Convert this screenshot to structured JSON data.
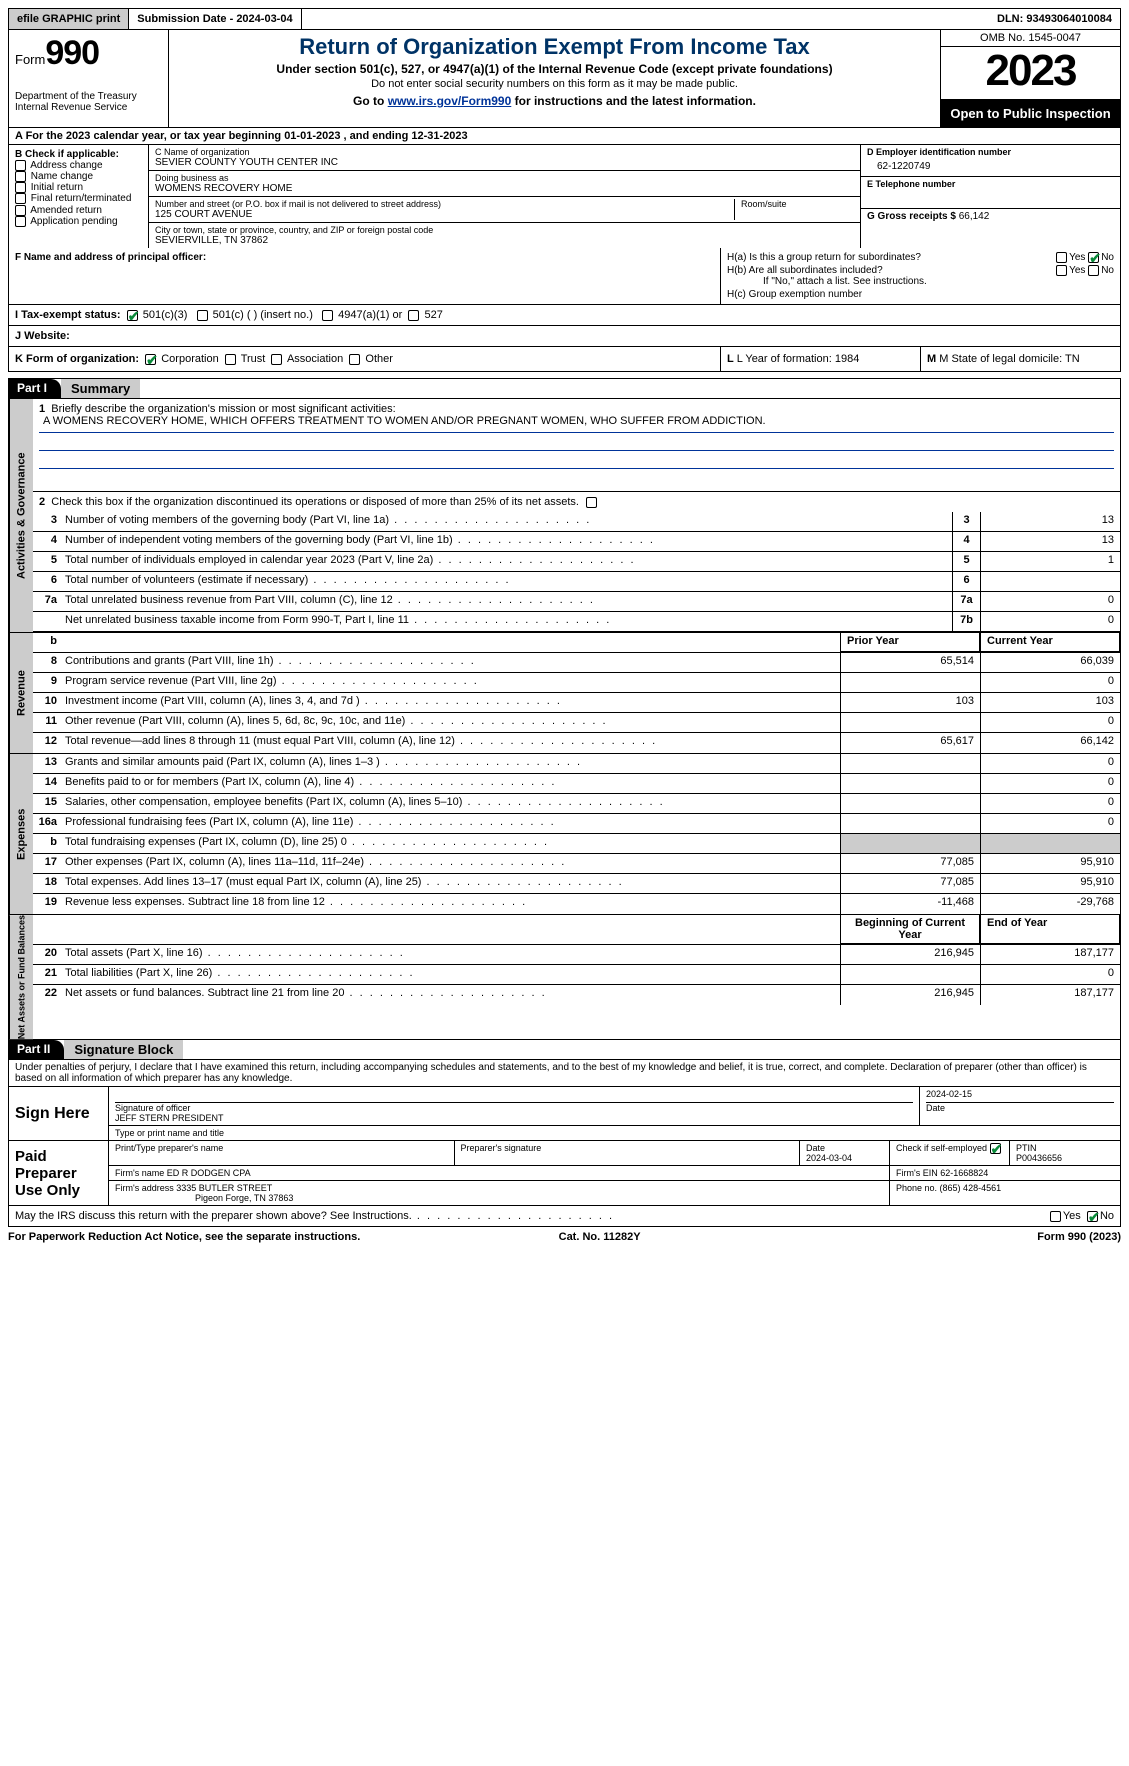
{
  "topbar": {
    "efile": "efile GRAPHIC print",
    "subdate_label": "Submission Date - 2024-03-04",
    "dln": "DLN: 93493064010084"
  },
  "header": {
    "form_label": "Form",
    "form_number": "990",
    "dept": "Department of the Treasury Internal Revenue Service",
    "title": "Return of Organization Exempt From Income Tax",
    "subtitle": "Under section 501(c), 527, or 4947(a)(1) of the Internal Revenue Code (except private foundations)",
    "note": "Do not enter social security numbers on this form as it may be made public.",
    "goto_prefix": "Go to ",
    "goto_link": "www.irs.gov/Form990",
    "goto_suffix": " for instructions and the latest information.",
    "omb": "OMB No. 1545-0047",
    "year": "2023",
    "inspect": "Open to Public Inspection"
  },
  "row_a": "A For the 2023 calendar year, or tax year beginning 01-01-2023   , and ending 12-31-2023",
  "box_b": {
    "title": "B Check if applicable:",
    "items": [
      "Address change",
      "Name change",
      "Initial return",
      "Final return/terminated",
      "Amended return",
      "Application pending"
    ]
  },
  "box_c": {
    "name_lbl": "C Name of organization",
    "name": "SEVIER COUNTY YOUTH CENTER INC",
    "dba_lbl": "Doing business as",
    "dba": "WOMENS RECOVERY HOME",
    "addr_lbl": "Number and street (or P.O. box if mail is not delivered to street address)",
    "addr": "125 COURT AVENUE",
    "room_lbl": "Room/suite",
    "city_lbl": "City or town, state or province, country, and ZIP or foreign postal code",
    "city": "SEVIERVILLE, TN  37862"
  },
  "box_d": {
    "ein_lbl": "D Employer identification number",
    "ein": "62-1220749",
    "tel_lbl": "E Telephone number",
    "gross_lbl": "G Gross receipts $ ",
    "gross": "66,142"
  },
  "box_f": "F  Name and address of principal officer:",
  "box_h": {
    "ha": "H(a)  Is this a group return for subordinates?",
    "hb": "H(b)  Are all subordinates included?",
    "hb_note": "If \"No,\" attach a list. See instructions.",
    "hc": "H(c)  Group exemption number",
    "yes": "Yes",
    "no": "No"
  },
  "box_i": {
    "lbl": "I   Tax-exempt status:",
    "opt1": "501(c)(3)",
    "opt2": "501(c) (  ) (insert no.)",
    "opt3": "4947(a)(1) or",
    "opt4": "527"
  },
  "box_j": "J   Website:",
  "box_k": {
    "lbl": "K Form of organization:",
    "opts": [
      "Corporation",
      "Trust",
      "Association",
      "Other"
    ]
  },
  "box_l": "L Year of formation: 1984",
  "box_m": "M State of legal domicile: TN",
  "part1": {
    "tag": "Part I",
    "title": "Summary",
    "vtab1": "Activities & Governance",
    "line1_lbl": "Briefly describe the organization's mission or most significant activities:",
    "line1_val": "A WOMENS RECOVERY HOME, WHICH OFFERS TREATMENT TO WOMEN AND/OR PREGNANT WOMEN, WHO SUFFER FROM ADDICTION.",
    "line2": "Check this box          if the organization discontinued its operations or disposed of more than 25% of its net assets.",
    "rows_gov": [
      {
        "n": "3",
        "d": "Number of voting members of the governing body (Part VI, line 1a)",
        "b": "3",
        "v": "13"
      },
      {
        "n": "4",
        "d": "Number of independent voting members of the governing body (Part VI, line 1b)",
        "b": "4",
        "v": "13"
      },
      {
        "n": "5",
        "d": "Total number of individuals employed in calendar year 2023 (Part V, line 2a)",
        "b": "5",
        "v": "1"
      },
      {
        "n": "6",
        "d": "Total number of volunteers (estimate if necessary)",
        "b": "6",
        "v": ""
      },
      {
        "n": "7a",
        "d": "Total unrelated business revenue from Part VIII, column (C), line 12",
        "b": "7a",
        "v": "0"
      },
      {
        "n": "",
        "d": "Net unrelated business taxable income from Form 990-T, Part I, line 11",
        "b": "7b",
        "v": "0"
      }
    ],
    "col_prior": "Prior Year",
    "col_current": "Current Year",
    "vtab2": "Revenue",
    "rows_rev": [
      {
        "n": "8",
        "d": "Contributions and grants (Part VIII, line 1h)",
        "p": "65,514",
        "c": "66,039"
      },
      {
        "n": "9",
        "d": "Program service revenue (Part VIII, line 2g)",
        "p": "",
        "c": "0"
      },
      {
        "n": "10",
        "d": "Investment income (Part VIII, column (A), lines 3, 4, and 7d )",
        "p": "103",
        "c": "103"
      },
      {
        "n": "11",
        "d": "Other revenue (Part VIII, column (A), lines 5, 6d, 8c, 9c, 10c, and 11e)",
        "p": "",
        "c": "0"
      },
      {
        "n": "12",
        "d": "Total revenue—add lines 8 through 11 (must equal Part VIII, column (A), line 12)",
        "p": "65,617",
        "c": "66,142"
      }
    ],
    "vtab3": "Expenses",
    "rows_exp": [
      {
        "n": "13",
        "d": "Grants and similar amounts paid (Part IX, column (A), lines 1–3 )",
        "p": "",
        "c": "0"
      },
      {
        "n": "14",
        "d": "Benefits paid to or for members (Part IX, column (A), line 4)",
        "p": "",
        "c": "0"
      },
      {
        "n": "15",
        "d": "Salaries, other compensation, employee benefits (Part IX, column (A), lines 5–10)",
        "p": "",
        "c": "0"
      },
      {
        "n": "16a",
        "d": "Professional fundraising fees (Part IX, column (A), line 11e)",
        "p": "",
        "c": "0"
      },
      {
        "n": "b",
        "d": "Total fundraising expenses (Part IX, column (D), line 25) 0",
        "p": "SHADE",
        "c": "SHADE"
      },
      {
        "n": "17",
        "d": "Other expenses (Part IX, column (A), lines 11a–11d, 11f–24e)",
        "p": "77,085",
        "c": "95,910"
      },
      {
        "n": "18",
        "d": "Total expenses. Add lines 13–17 (must equal Part IX, column (A), line 25)",
        "p": "77,085",
        "c": "95,910"
      },
      {
        "n": "19",
        "d": "Revenue less expenses. Subtract line 18 from line 12",
        "p": "-11,468",
        "c": "-29,768"
      }
    ],
    "vtab4": "Net Assets or Fund Balances",
    "col_beg": "Beginning of Current Year",
    "col_end": "End of Year",
    "rows_net": [
      {
        "n": "20",
        "d": "Total assets (Part X, line 16)",
        "p": "216,945",
        "c": "187,177"
      },
      {
        "n": "21",
        "d": "Total liabilities (Part X, line 26)",
        "p": "",
        "c": "0"
      },
      {
        "n": "22",
        "d": "Net assets or fund balances. Subtract line 21 from line 20",
        "p": "216,945",
        "c": "187,177"
      }
    ]
  },
  "part2": {
    "tag": "Part II",
    "title": "Signature Block",
    "penalty": "Under penalties of perjury, I declare that I have examined this return, including accompanying schedules and statements, and to the best of my knowledge and belief, it is true, correct, and complete. Declaration of preparer (other than officer) is based on all information of which preparer has any knowledge.",
    "sign_here": "Sign Here",
    "sig_officer_lbl": "Signature of officer",
    "sig_officer": "JEFF STERN PRESIDENT",
    "sig_type_lbl": "Type or print name and title",
    "sig_date_lbl": "Date",
    "sig_date": "2024-02-15",
    "paid": "Paid Preparer Use Only",
    "prep_name_lbl": "Print/Type preparer's name",
    "prep_sig_lbl": "Preparer's signature",
    "prep_date_lbl": "Date",
    "prep_date": "2024-03-04",
    "prep_check_lbl": "Check         if self-employed",
    "ptin_lbl": "PTIN",
    "ptin": "P00436656",
    "firm_name_lbl": "Firm's name    ",
    "firm_name": "ED R DODGEN CPA",
    "firm_ein_lbl": "Firm's EIN ",
    "firm_ein": "62-1668824",
    "firm_addr_lbl": "Firm's address ",
    "firm_addr1": "3335 BUTLER STREET",
    "firm_addr2": "Pigeon Forge, TN  37863",
    "firm_phone_lbl": "Phone no. ",
    "firm_phone": "(865) 428-4561",
    "may_irs": "May the IRS discuss this return with the preparer shown above? See Instructions."
  },
  "footer": {
    "left": "For Paperwork Reduction Act Notice, see the separate instructions.",
    "mid": "Cat. No. 11282Y",
    "right": "Form 990 (2023)"
  }
}
